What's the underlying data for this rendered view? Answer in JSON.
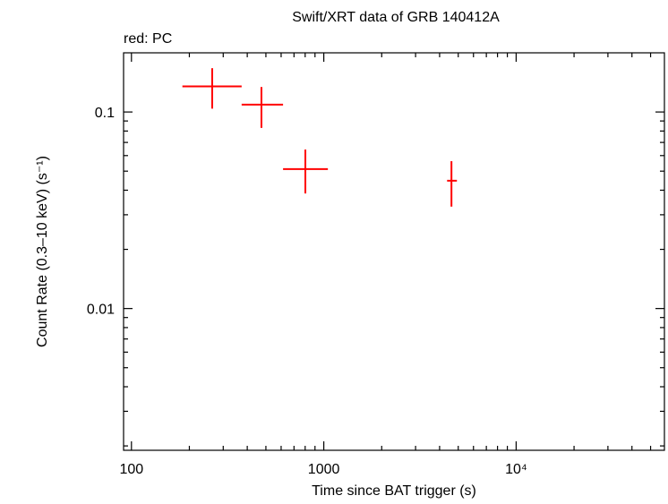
{
  "chart_data": {
    "type": "scatter",
    "title": "Swift/XRT data of GRB 140412A",
    "subtitle": "red: PC",
    "x_label": "Time since BAT trigger (s)",
    "y_label": "Count Rate (0.3–10 keV) (s⁻¹)",
    "x_log": true,
    "y_log": true,
    "xlim": [
      91,
      59000
    ],
    "ylim": [
      0.0019,
      0.2
    ],
    "xticks": [
      100,
      1000,
      {
        "value": 10000,
        "label": "10⁴"
      }
    ],
    "yticks": [
      0.01,
      0.1
    ],
    "xminorticks": [
      200,
      300,
      400,
      500,
      600,
      700,
      800,
      900,
      2000,
      3000,
      4000,
      5000,
      6000,
      7000,
      8000,
      9000,
      20000,
      30000,
      40000,
      50000
    ],
    "yminorticks": [
      0.002,
      0.003,
      0.004,
      0.005,
      0.006,
      0.007,
      0.008,
      0.009,
      0.02,
      0.03,
      0.04,
      0.05,
      0.06,
      0.07,
      0.08,
      0.09
    ],
    "series": [
      {
        "color": "#ff0000",
        "x": [
          263,
          474,
          802,
          4610
        ],
        "x_low": [
          184,
          374,
          614,
          4375
        ],
        "x_high": [
          374,
          614,
          1050,
          4920
        ],
        "values": [
          0.135,
          0.109,
          0.0512,
          0.0447
        ],
        "y_low": [
          0.104,
          0.083,
          0.0385,
          0.033
        ],
        "y_high": [
          0.167,
          0.134,
          0.0644,
          0.0562
        ]
      }
    ]
  }
}
